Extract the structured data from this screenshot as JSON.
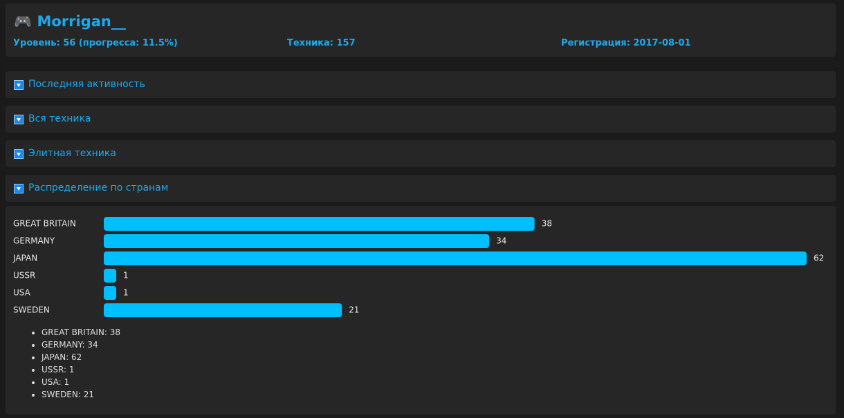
{
  "header": {
    "icon": "🎮",
    "name": "Morrigan__",
    "stats": [
      "Уровень: 56 (прогресса: 11.5%)",
      "Техника: 157",
      "Регистрация: 2017-08-01"
    ]
  },
  "sections": [
    "Последняя активность",
    "Вся техника",
    "Элитная техника",
    "Распределение по странам"
  ],
  "chart_data": {
    "type": "bar",
    "orientation": "horizontal",
    "color": "#00bfff",
    "categories": [
      "GREAT BRITAIN",
      "GERMANY",
      "JAPAN",
      "USSR",
      "USA",
      "SWEDEN"
    ],
    "values": [
      38,
      34,
      62,
      1,
      1,
      21
    ]
  },
  "list": [
    "GREAT BRITAIN: 38",
    "GERMANY: 34",
    "JAPAN: 62",
    "USSR: 1",
    "USA: 1",
    "SWEDEN: 21"
  ]
}
